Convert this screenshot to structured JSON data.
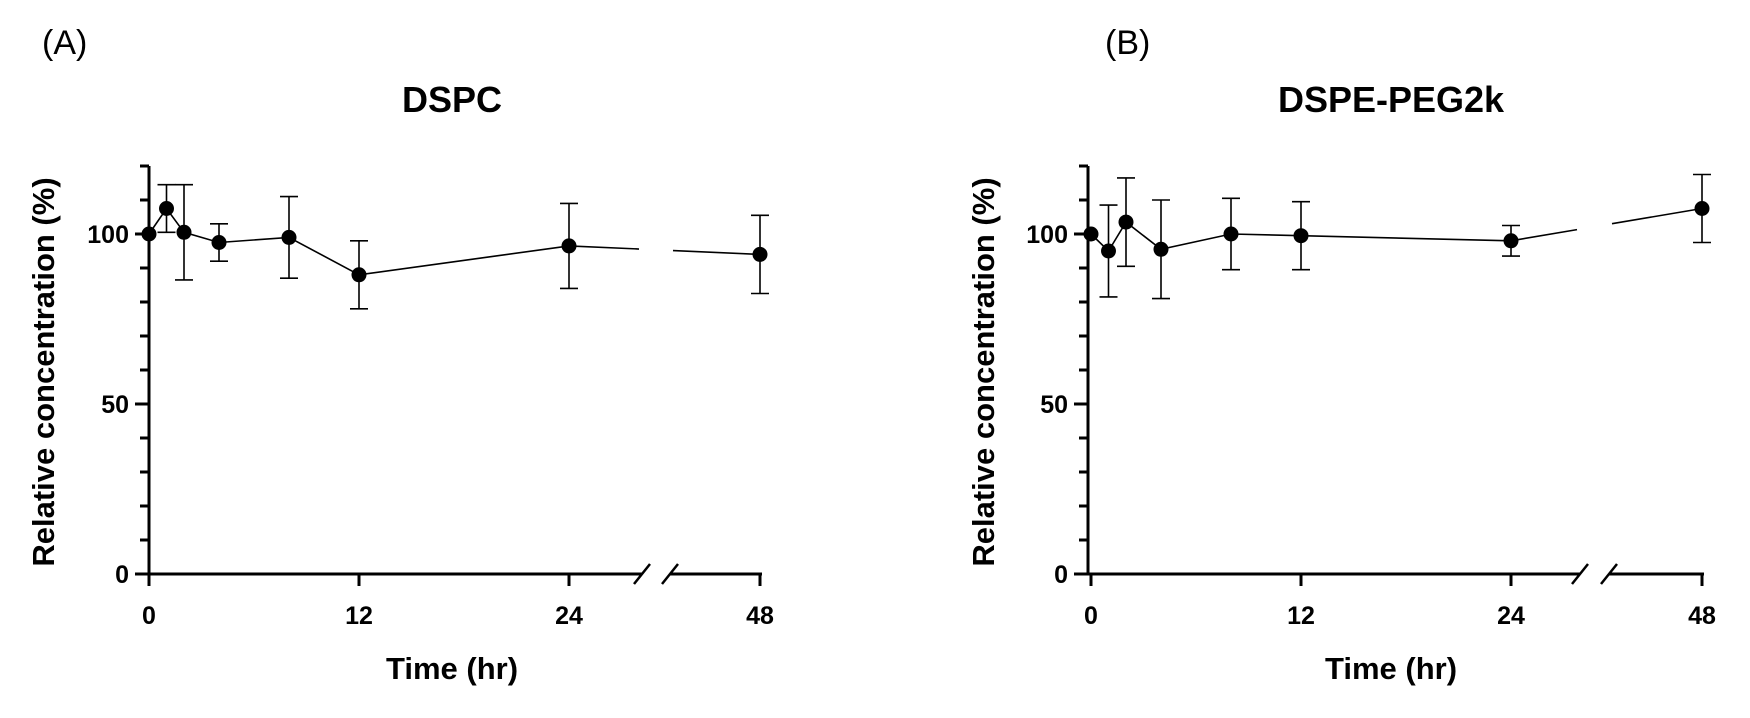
{
  "chart_data": [
    {
      "type": "line",
      "panel_label": "(A)",
      "title": "DSPC",
      "xlabel": "Time (hr)",
      "ylabel": "Relative concentration (%)",
      "ylim": [
        0,
        120
      ],
      "yticks": [
        "0",
        "50",
        "100"
      ],
      "xticks": [
        "0",
        "12",
        "24",
        "48"
      ],
      "x_axis_break": "between 24 and 48",
      "series": [
        {
          "x": [
            0,
            1,
            2,
            4,
            8,
            12,
            24,
            48
          ],
          "y": [
            100,
            107.5,
            100.5,
            97.5,
            99,
            88,
            96.5,
            94
          ],
          "error": [
            0,
            7,
            14,
            5.5,
            12,
            10,
            12.5,
            11.5
          ]
        }
      ]
    },
    {
      "type": "line",
      "panel_label": "(B)",
      "title": "DSPE-PEG2k",
      "xlabel": "Time (hr)",
      "ylabel": "Relative concentration (%)",
      "ylim": [
        0,
        120
      ],
      "yticks": [
        "0",
        "50",
        "100"
      ],
      "xticks": [
        "0",
        "12",
        "24",
        "48"
      ],
      "x_axis_break": "between 24 and 48",
      "series": [
        {
          "x": [
            0,
            1,
            2,
            4,
            8,
            12,
            24,
            48
          ],
          "y": [
            100,
            95,
            103.5,
            95.5,
            100,
            99.5,
            98,
            107.5
          ],
          "error": [
            0,
            13.5,
            13,
            14.5,
            10.5,
            10,
            4.5,
            10
          ]
        }
      ]
    }
  ]
}
